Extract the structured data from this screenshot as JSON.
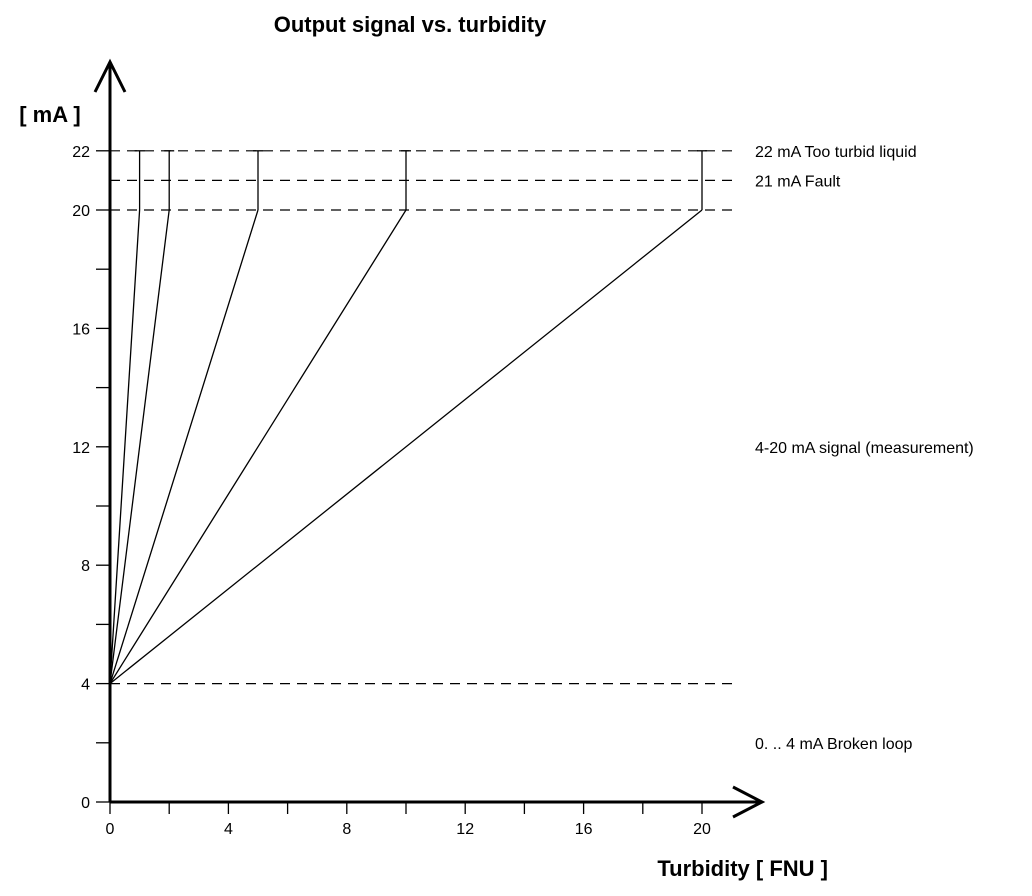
{
  "chart_data": {
    "type": "line",
    "title": "Output signal vs. turbidity",
    "xlabel": "Turbidity [ FNU ]",
    "ylabel": "[ mA ]",
    "xlim": [
      0,
      21
    ],
    "ylim": [
      0,
      22
    ],
    "x_ticks": [
      0,
      4,
      8,
      12,
      16,
      20
    ],
    "x_minor_ticks": [
      2,
      6,
      10,
      14,
      18
    ],
    "y_ticks": [
      0,
      4,
      8,
      12,
      16,
      20,
      22
    ],
    "y_minor_ticks": [
      2,
      6,
      10,
      14,
      18
    ],
    "series": [
      {
        "x": [
          0,
          1
        ],
        "y": [
          4,
          20
        ],
        "range_top": 22
      },
      {
        "x": [
          0,
          2
        ],
        "y": [
          4,
          20
        ],
        "range_top": 22
      },
      {
        "x": [
          0,
          5
        ],
        "y": [
          4,
          20
        ],
        "range_top": 22
      },
      {
        "x": [
          0,
          10
        ],
        "y": [
          4,
          20
        ],
        "range_top": 22
      },
      {
        "x": [
          0,
          20
        ],
        "y": [
          4,
          20
        ],
        "range_top": 22
      }
    ],
    "reference_lines": [
      {
        "y": 22,
        "style": "dashed"
      },
      {
        "y": 21,
        "style": "dashed"
      },
      {
        "y": 20,
        "style": "dashed"
      },
      {
        "y": 4,
        "style": "dashed"
      }
    ],
    "annotations": [
      {
        "y": 22,
        "text": "22 mA Too turbid liquid"
      },
      {
        "y": 21,
        "text": "21 mA Fault"
      },
      {
        "y": 12,
        "text": "4-20 mA signal (measurement)"
      },
      {
        "y": 2,
        "text": "0. .. 4 mA Broken loop"
      }
    ],
    "grid": false,
    "legend": "none"
  }
}
